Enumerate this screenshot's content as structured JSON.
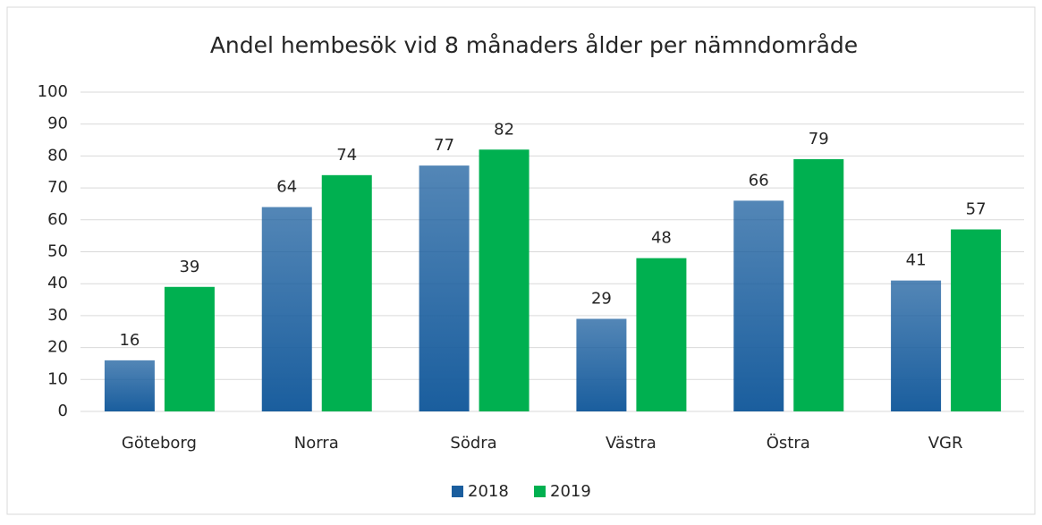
{
  "chart_data": {
    "type": "bar",
    "title": "Andel hembesök vid 8 månaders ålder per nämndområde",
    "categories": [
      "Göteborg",
      "Norra",
      "Södra",
      "Västra",
      "Östra",
      "VGR"
    ],
    "series": [
      {
        "name": "2018",
        "color": "#1a5e9e",
        "values": [
          16,
          64,
          77,
          29,
          66,
          41
        ]
      },
      {
        "name": "2019",
        "color": "#00b050",
        "values": [
          39,
          74,
          82,
          48,
          79,
          57
        ]
      }
    ],
    "ylim": [
      0,
      100
    ],
    "yticks": [
      0,
      10,
      20,
      30,
      40,
      50,
      60,
      70,
      80,
      90,
      100
    ],
    "grid": true,
    "legend": "bottom"
  }
}
